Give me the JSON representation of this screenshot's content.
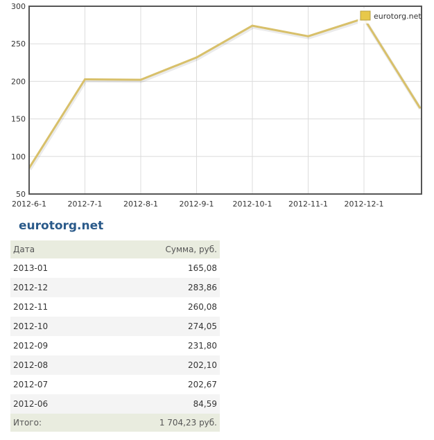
{
  "chart_data": {
    "type": "line",
    "x_tick_labels": [
      "2012-6-1",
      "2012-7-1",
      "2012-8-1",
      "2012-9-1",
      "2012-10-1",
      "2012-11-1",
      "2012-12-1"
    ],
    "x": [
      "2012-06",
      "2012-07",
      "2012-08",
      "2012-09",
      "2012-10",
      "2012-11",
      "2012-12",
      "2013-01"
    ],
    "series": [
      {
        "name": "eurotorg.net",
        "values": [
          84.59,
          202.67,
          202.1,
          231.8,
          274.05,
          260.08,
          283.86,
          165.08
        ]
      }
    ],
    "ylim": [
      50,
      300
    ],
    "yticks": [
      50,
      100,
      150,
      200,
      250,
      300
    ],
    "grid": true,
    "legend_position": "top-right",
    "line_color": "#d8c06a",
    "legend_color": "#e7c84a"
  },
  "site_title": "eurotorg.net",
  "table": {
    "header": {
      "date": "Дата",
      "sum": "Сумма, руб."
    },
    "rows": [
      {
        "date": "2013-01",
        "sum": "165,08"
      },
      {
        "date": "2012-12",
        "sum": "283,86"
      },
      {
        "date": "2012-11",
        "sum": "260,08"
      },
      {
        "date": "2012-10",
        "sum": "274,05"
      },
      {
        "date": "2012-09",
        "sum": "231,80"
      },
      {
        "date": "2012-08",
        "sum": "202,10"
      },
      {
        "date": "2012-07",
        "sum": "202,67"
      },
      {
        "date": "2012-06",
        "sum": "84,59"
      }
    ],
    "footer": {
      "label": "Итого:",
      "total": "1 704,23 руб."
    }
  }
}
